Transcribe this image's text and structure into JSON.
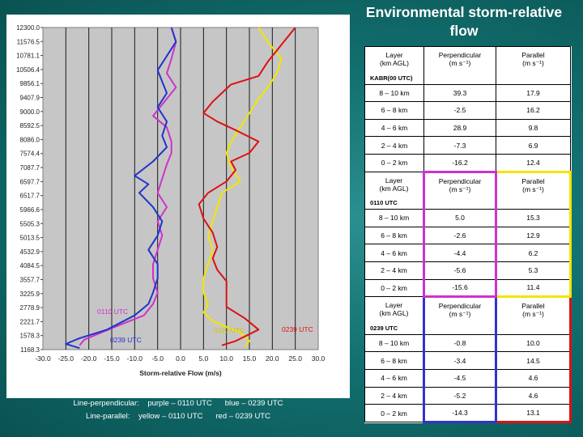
{
  "slide": {
    "title": "Environmental storm-relative flow",
    "caption_line1": "Line-perpendicular:    purple – 0110 UTC      blue – 0239 UTC",
    "caption_line2": "Line-parallel:    yellow – 0110 UTC      red – 0239 UTC"
  },
  "chart_data": {
    "type": "line",
    "xlabel": "Storm-relative Flow (m/s)",
    "ylabel": "",
    "xlim": [
      -30,
      30
    ],
    "x_ticks": [
      "-30.0",
      "-25.0",
      "-20.0",
      "-15.0",
      "-10.0",
      "-5.0",
      "0.0",
      "5.0",
      "10.0",
      "15.0",
      "20.0",
      "25.0",
      "30.0"
    ],
    "y_ticks": [
      "12300.0",
      "11576.5",
      "10781.1",
      "10506.4",
      "9856.1",
      "9407.9",
      "9000.0",
      "8592.5",
      "8086.0",
      "7574.4",
      "7087.7",
      "6597.7",
      "6517.7",
      "5966.6",
      "5505.3",
      "5013.5",
      "4532.9",
      "4084.5",
      "3557.7",
      "3225.9",
      "2778.9",
      "2221.7",
      "1578.3",
      "1168.3"
    ],
    "ylim_km": [
      1.0,
      12.3
    ],
    "grid": "vertical lines",
    "annotations": [
      {
        "text": "0110 UTC",
        "color": "#cc33cc"
      },
      {
        "text": "0239 UTC",
        "color": "#2233cc"
      },
      {
        "text": "0110 UTC",
        "color": "#d6c400"
      },
      {
        "text": "0239 UTC",
        "color": "#dd1111"
      }
    ],
    "series": [
      {
        "key": "perp-0110",
        "color": "#cc33cc",
        "points": [
          [
            -2,
            12.3
          ],
          [
            -1,
            11.8
          ],
          [
            -2,
            11.2
          ],
          [
            -3,
            10.7
          ],
          [
            -1,
            10.2
          ],
          [
            -4,
            9.6
          ],
          [
            -6,
            9.2
          ],
          [
            -3,
            8.8
          ],
          [
            -2,
            8.3
          ],
          [
            -2,
            7.9
          ],
          [
            -3,
            7.5
          ],
          [
            -4,
            7.0
          ],
          [
            -5,
            6.5
          ],
          [
            -3,
            6.0
          ],
          [
            -5,
            5.5
          ],
          [
            -4,
            5.0
          ],
          [
            -5,
            4.5
          ],
          [
            -6,
            4.0
          ],
          [
            -6,
            3.5
          ],
          [
            -5,
            3.0
          ],
          [
            -6,
            2.6
          ],
          [
            -8,
            2.2
          ],
          [
            -15,
            1.75
          ],
          [
            -21,
            1.35
          ],
          [
            -22,
            1.15
          ]
        ]
      },
      {
        "key": "perp-0239",
        "color": "#2233cc",
        "points": [
          [
            -2,
            12.3
          ],
          [
            -1,
            11.8
          ],
          [
            -3,
            11.3
          ],
          [
            -5,
            10.8
          ],
          [
            -4,
            10.4
          ],
          [
            -3,
            10.0
          ],
          [
            -5,
            9.5
          ],
          [
            -3,
            9.0
          ],
          [
            -4,
            8.5
          ],
          [
            -3,
            8.1
          ],
          [
            -6,
            7.6
          ],
          [
            -10,
            7.1
          ],
          [
            -7,
            6.8
          ],
          [
            -9,
            6.5
          ],
          [
            -6,
            6.0
          ],
          [
            -4,
            5.5
          ],
          [
            -5,
            5.0
          ],
          [
            -7,
            4.5
          ],
          [
            -5,
            4.0
          ],
          [
            -5,
            3.5
          ],
          [
            -6,
            3.0
          ],
          [
            -7,
            2.6
          ],
          [
            -10,
            2.2
          ],
          [
            -16,
            1.7
          ],
          [
            -22,
            1.4
          ],
          [
            -25,
            1.2
          ],
          [
            -22,
            1.05
          ]
        ]
      },
      {
        "key": "para-0110",
        "color": "#f2e600",
        "points": [
          [
            17,
            12.3
          ],
          [
            19,
            11.8
          ],
          [
            22,
            11.2
          ],
          [
            21,
            10.7
          ],
          [
            19,
            10.2
          ],
          [
            17,
            9.8
          ],
          [
            15,
            9.3
          ],
          [
            13,
            8.8
          ],
          [
            11,
            8.3
          ],
          [
            10,
            7.9
          ],
          [
            11,
            7.4
          ],
          [
            13,
            6.9
          ],
          [
            9,
            6.5
          ],
          [
            8,
            6.0
          ],
          [
            7,
            5.5
          ],
          [
            6,
            5.0
          ],
          [
            7,
            4.5
          ],
          [
            6,
            4.0
          ],
          [
            5,
            3.5
          ],
          [
            5,
            3.0
          ],
          [
            6,
            2.6
          ],
          [
            5,
            2.3
          ],
          [
            7,
            2.0
          ],
          [
            13,
            1.6
          ],
          [
            15,
            1.3
          ],
          [
            14,
            1.1
          ]
        ]
      },
      {
        "key": "para-0239",
        "color": "#dd1111",
        "points": [
          [
            25,
            12.3
          ],
          [
            22,
            11.7
          ],
          [
            19,
            11.1
          ],
          [
            17,
            10.6
          ],
          [
            11,
            10.3
          ],
          [
            7,
            9.7
          ],
          [
            5,
            9.3
          ],
          [
            8,
            9.0
          ],
          [
            12,
            8.7
          ],
          [
            17,
            8.3
          ],
          [
            15,
            7.9
          ],
          [
            11,
            7.6
          ],
          [
            12,
            7.3
          ],
          [
            10,
            6.9
          ],
          [
            6,
            6.5
          ],
          [
            4,
            6.1
          ],
          [
            5,
            5.6
          ],
          [
            7,
            5.1
          ],
          [
            8,
            4.6
          ],
          [
            7,
            4.2
          ],
          [
            8,
            3.8
          ],
          [
            10,
            3.4
          ],
          [
            10,
            3.0
          ],
          [
            10,
            2.5
          ],
          [
            14,
            2.1
          ],
          [
            17,
            1.7
          ],
          [
            12,
            1.3
          ],
          [
            9,
            1.15
          ]
        ]
      }
    ]
  },
  "table": {
    "header": {
      "layer": "Layer\n(km AGL)",
      "perp": "Perpendicular\n(m s⁻¹)",
      "para": "Parallel\n(m s⁻¹)"
    },
    "groups": [
      {
        "period": "KABR(00 UTC)",
        "rows": [
          [
            "8 – 10 km",
            "39.3",
            "17.9"
          ],
          [
            "6 – 8 km",
            "-2.5",
            "16.2"
          ],
          [
            "4 – 6 km",
            "28.9",
            "9.8"
          ],
          [
            "2 – 4 km",
            "-7.3",
            "6.9"
          ],
          [
            "0 – 2 km",
            "-16.2",
            "12.4"
          ]
        ]
      },
      {
        "period": "0110 UTC",
        "rows": [
          [
            "8 – 10 km",
            "5.0",
            "15.3"
          ],
          [
            "6 – 8 km",
            "-2.6",
            "12.9"
          ],
          [
            "4 – 6 km",
            "-4.4",
            "6.2"
          ],
          [
            "2 – 4 km",
            "-5.6",
            "5.3"
          ],
          [
            "0 – 2 km",
            "-15.6",
            "11.4"
          ]
        ]
      },
      {
        "period": "0239 UTC",
        "rows": [
          [
            "8 – 10 km",
            "-0.8",
            "10.0"
          ],
          [
            "6 – 8 km",
            "-3.4",
            "14.5"
          ],
          [
            "4 – 6 km",
            "-4.5",
            "4.6"
          ],
          [
            "2 – 4 km",
            "-5.2",
            "4.6"
          ],
          [
            "0 – 2 km",
            "-14.3",
            "13.1"
          ]
        ]
      }
    ]
  }
}
